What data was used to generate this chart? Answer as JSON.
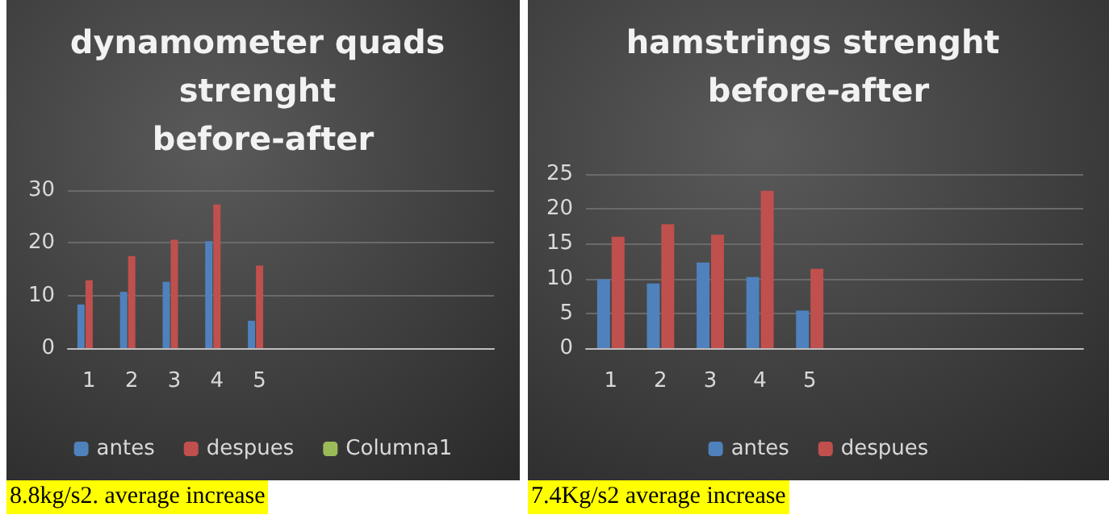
{
  "chart_data": [
    {
      "type": "bar",
      "title": "dynamometer quads strenght before-after",
      "categories": [
        "1",
        "2",
        "3",
        "4",
        "5",
        null,
        null,
        null,
        null,
        null
      ],
      "series": [
        {
          "name": "antes",
          "color": "#4f81bd",
          "values": [
            8.3,
            10.7,
            12.6,
            20.3,
            5.2,
            null,
            null,
            null,
            null,
            null
          ]
        },
        {
          "name": "despues",
          "color": "#c0504d",
          "values": [
            12.9,
            17.5,
            20.6,
            27.3,
            15.7,
            null,
            null,
            null,
            null,
            null
          ]
        },
        {
          "name": "Columna1",
          "color": "#9bbb59",
          "values": [
            null,
            null,
            null,
            null,
            null,
            null,
            null,
            null,
            null,
            null
          ]
        }
      ],
      "ylim": [
        0,
        30
      ],
      "yticks": [
        0,
        10,
        20,
        30
      ],
      "grid": "y",
      "legend": "bottom",
      "annotations": [
        "8.8kg/s2. average increase"
      ]
    },
    {
      "type": "bar",
      "title": "hamstrings strenght before-after",
      "categories": [
        "1",
        "2",
        "3",
        "4",
        "5",
        null,
        null,
        null,
        null,
        null
      ],
      "series": [
        {
          "name": "antes",
          "color": "#4f81bd",
          "values": [
            9.9,
            9.3,
            12.3,
            10.2,
            5.4,
            null,
            null,
            null,
            null,
            null
          ]
        },
        {
          "name": "despues",
          "color": "#c0504d",
          "values": [
            16.0,
            17.8,
            16.3,
            22.6,
            11.4,
            null,
            null,
            null,
            null,
            null
          ]
        }
      ],
      "ylim": [
        0,
        25
      ],
      "yticks": [
        0,
        5,
        10,
        15,
        20,
        25
      ],
      "grid": "y",
      "legend": "bottom",
      "annotations": [
        "7.4Kg/s2 average increase"
      ]
    }
  ]
}
